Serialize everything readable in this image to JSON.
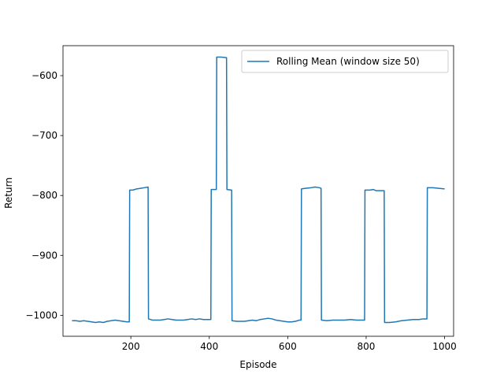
{
  "chart_data": {
    "type": "line",
    "title": "",
    "xlabel": "Episode",
    "ylabel": "Return",
    "xlim": [
      27,
      1023
    ],
    "ylim": [
      -1035,
      -550
    ],
    "xticks": [
      200,
      400,
      600,
      800,
      1000
    ],
    "yticks": [
      -1000,
      -900,
      -800,
      -700,
      -600
    ],
    "grid": false,
    "legend_position": "top-right",
    "colors": {
      "series": "#1f77b4"
    },
    "series": [
      {
        "name": "Rolling Mean (window size 50)",
        "points": [
          [
            50,
            -1009
          ],
          [
            60,
            -1009
          ],
          [
            70,
            -1010
          ],
          [
            80,
            -1009
          ],
          [
            90,
            -1010
          ],
          [
            100,
            -1011
          ],
          [
            110,
            -1012
          ],
          [
            120,
            -1011
          ],
          [
            130,
            -1012
          ],
          [
            140,
            -1010
          ],
          [
            150,
            -1009
          ],
          [
            160,
            -1008
          ],
          [
            170,
            -1009
          ],
          [
            180,
            -1010
          ],
          [
            190,
            -1011
          ],
          [
            196,
            -1011
          ],
          [
            197,
            -791
          ],
          [
            205,
            -791
          ],
          [
            215,
            -789
          ],
          [
            225,
            -788
          ],
          [
            235,
            -787
          ],
          [
            244,
            -786
          ],
          [
            245,
            -1006
          ],
          [
            255,
            -1008
          ],
          [
            265,
            -1008
          ],
          [
            275,
            -1008
          ],
          [
            285,
            -1007
          ],
          [
            295,
            -1006
          ],
          [
            305,
            -1007
          ],
          [
            315,
            -1008
          ],
          [
            325,
            -1008
          ],
          [
            335,
            -1008
          ],
          [
            345,
            -1007
          ],
          [
            355,
            -1006
          ],
          [
            365,
            -1007
          ],
          [
            375,
            -1006
          ],
          [
            385,
            -1007
          ],
          [
            395,
            -1007
          ],
          [
            404,
            -1007
          ],
          [
            405,
            -790
          ],
          [
            418,
            -790
          ],
          [
            419,
            -569
          ],
          [
            430,
            -569
          ],
          [
            444,
            -570
          ],
          [
            445,
            -790
          ],
          [
            457,
            -791
          ],
          [
            458,
            -1009
          ],
          [
            470,
            -1010
          ],
          [
            480,
            -1010
          ],
          [
            490,
            -1010
          ],
          [
            500,
            -1009
          ],
          [
            510,
            -1008
          ],
          [
            520,
            -1009
          ],
          [
            530,
            -1007
          ],
          [
            540,
            -1006
          ],
          [
            550,
            -1005
          ],
          [
            560,
            -1006
          ],
          [
            570,
            -1008
          ],
          [
            580,
            -1009
          ],
          [
            590,
            -1010
          ],
          [
            600,
            -1011
          ],
          [
            610,
            -1011
          ],
          [
            620,
            -1010
          ],
          [
            630,
            -1008
          ],
          [
            634,
            -1008
          ],
          [
            635,
            -789
          ],
          [
            645,
            -788
          ],
          [
            660,
            -787
          ],
          [
            670,
            -786
          ],
          [
            680,
            -787
          ],
          [
            685,
            -788
          ],
          [
            686,
            -1008
          ],
          [
            700,
            -1009
          ],
          [
            715,
            -1008
          ],
          [
            730,
            -1008
          ],
          [
            745,
            -1008
          ],
          [
            760,
            -1007
          ],
          [
            775,
            -1008
          ],
          [
            790,
            -1008
          ],
          [
            796,
            -1008
          ],
          [
            797,
            -791
          ],
          [
            810,
            -791
          ],
          [
            818,
            -790
          ],
          [
            825,
            -792
          ],
          [
            835,
            -792
          ],
          [
            846,
            -792
          ],
          [
            847,
            -1012
          ],
          [
            860,
            -1012
          ],
          [
            875,
            -1011
          ],
          [
            890,
            -1009
          ],
          [
            905,
            -1008
          ],
          [
            920,
            -1007
          ],
          [
            935,
            -1007
          ],
          [
            945,
            -1006
          ],
          [
            955,
            -1006
          ],
          [
            956,
            -787
          ],
          [
            970,
            -787
          ],
          [
            985,
            -788
          ],
          [
            1000,
            -789
          ]
        ]
      }
    ]
  }
}
